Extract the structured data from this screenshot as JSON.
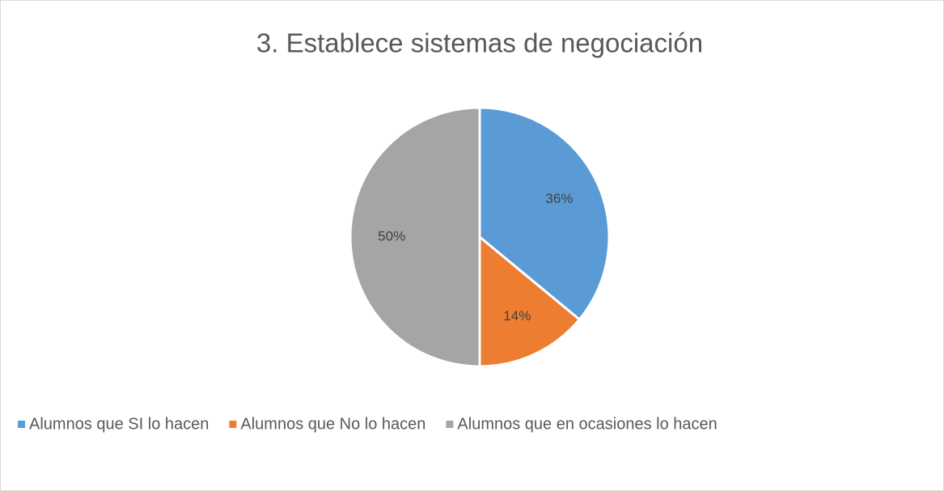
{
  "chart_data": {
    "type": "pie",
    "title": "3. Establece sistemas de negociación",
    "categories": [
      "Alumnos que SI lo hacen",
      "Alumnos que No lo hacen",
      "Alumnos que en ocasiones lo hacen"
    ],
    "values": [
      36,
      14,
      50
    ],
    "value_labels": [
      "36%",
      "14%",
      "50%"
    ],
    "colors": [
      "#5b9bd5",
      "#ed7d31",
      "#a5a5a5"
    ],
    "legend": "bottom"
  }
}
